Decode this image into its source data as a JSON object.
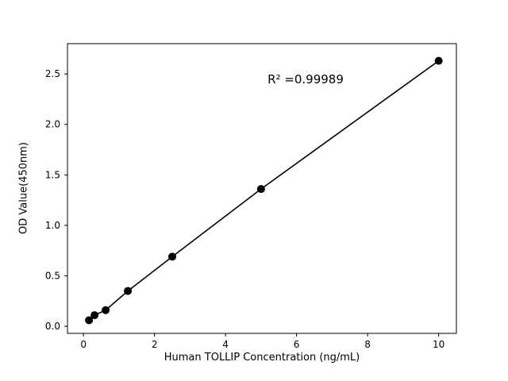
{
  "chart_data": {
    "type": "scatter",
    "x": [
      0.156,
      0.3125,
      0.625,
      1.25,
      2.5,
      5,
      10
    ],
    "y": [
      0.06,
      0.11,
      0.16,
      0.35,
      0.69,
      1.36,
      2.63
    ],
    "title": "",
    "xlabel": "Human TOLLIP Concentration (ng/mL)",
    "ylabel": "OD Value(450nm)",
    "annotation": "R² =0.99989",
    "xlim": [
      -0.45,
      10.5
    ],
    "ylim": [
      -0.07,
      2.8
    ],
    "xticks": [
      0,
      2,
      4,
      6,
      8,
      10
    ],
    "xtick_labels": [
      "0",
      "2",
      "4",
      "6",
      "8",
      "10"
    ],
    "yticks": [
      0.0,
      0.5,
      1.0,
      1.5,
      2.0,
      2.5
    ],
    "ytick_labels": [
      "0.0",
      "0.5",
      "1.0",
      "1.5",
      "2.0",
      "2.5"
    ],
    "grid": false,
    "legend": "none",
    "line": true,
    "line_color": "#000000",
    "marker_color": "#000000",
    "background_color": "#ffffff"
  }
}
